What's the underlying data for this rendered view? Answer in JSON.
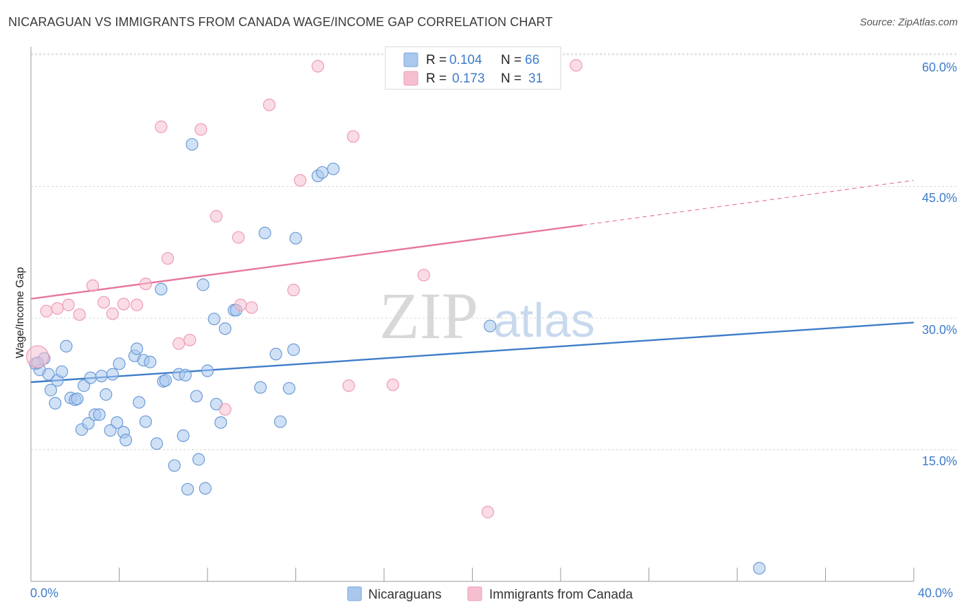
{
  "header": {
    "title": "NICARAGUAN VS IMMIGRANTS FROM CANADA WAGE/INCOME GAP CORRELATION CHART",
    "source": "Source: ZipAtlas.com"
  },
  "watermark": {
    "zip": "ZIP",
    "atlas": "atlas"
  },
  "legend": {
    "r_label": "R =",
    "n_label": "N =",
    "entries": [
      {
        "r": "0.104",
        "n": "66"
      },
      {
        "r": "0.173",
        "n": "31"
      }
    ]
  },
  "bottom_legend": {
    "items": [
      {
        "label": "Nicaraguans"
      },
      {
        "label": "Immigrants from Canada"
      }
    ]
  },
  "axes": {
    "ylabel": "Wage/Income Gap",
    "x_tick_labels": [
      "0.0%",
      "40.0%"
    ],
    "y_tick_labels": [
      "15.0%",
      "30.0%",
      "45.0%",
      "60.0%"
    ]
  },
  "colors": {
    "blue": "#3d7cc9",
    "blue_fill": "#aac8ee",
    "pink": "#e8759b",
    "pink_fill": "#f6bfd0",
    "grid": "#d6d6d6"
  },
  "chart_data": {
    "type": "scatter",
    "title": "NICARAGUAN VS IMMIGRANTS FROM CANADA WAGE/INCOME GAP CORRELATION CHART",
    "xlabel": "",
    "ylabel": "Wage/Income Gap",
    "xlim": [
      0,
      40
    ],
    "ylim": [
      0,
      64
    ],
    "y_ticks": [
      15,
      30,
      45,
      60
    ],
    "grid": true,
    "series": [
      {
        "name": "Nicaraguans",
        "color": "#3d7cc9",
        "trend": {
          "x": [
            0,
            40
          ],
          "y": [
            22.7,
            29.5
          ]
        },
        "points": [
          [
            0.2,
            24.8
          ],
          [
            0.4,
            24.1
          ],
          [
            0.6,
            25.4
          ],
          [
            0.8,
            23.6
          ],
          [
            0.9,
            21.8
          ],
          [
            1.1,
            20.3
          ],
          [
            1.2,
            22.9
          ],
          [
            1.4,
            23.9
          ],
          [
            1.6,
            26.8
          ],
          [
            1.8,
            20.9
          ],
          [
            2.0,
            20.7
          ],
          [
            2.4,
            22.3
          ],
          [
            2.3,
            17.3
          ],
          [
            2.6,
            18.0
          ],
          [
            2.7,
            23.2
          ],
          [
            2.9,
            19.0
          ],
          [
            3.1,
            19.0
          ],
          [
            3.2,
            23.4
          ],
          [
            3.4,
            21.3
          ],
          [
            3.6,
            17.2
          ],
          [
            3.7,
            23.6
          ],
          [
            3.9,
            18.1
          ],
          [
            4.0,
            24.8
          ],
          [
            4.2,
            17.0
          ],
          [
            4.3,
            16.1
          ],
          [
            4.7,
            25.7
          ],
          [
            4.8,
            26.5
          ],
          [
            4.9,
            20.4
          ],
          [
            5.1,
            25.2
          ],
          [
            5.2,
            18.2
          ],
          [
            5.4,
            25.0
          ],
          [
            5.7,
            15.7
          ],
          [
            5.9,
            33.3
          ],
          [
            6.0,
            22.8
          ],
          [
            6.1,
            22.9
          ],
          [
            6.5,
            13.2
          ],
          [
            6.7,
            23.6
          ],
          [
            6.9,
            16.6
          ],
          [
            7.0,
            23.5
          ],
          [
            7.1,
            10.5
          ],
          [
            7.3,
            49.8
          ],
          [
            7.5,
            21.1
          ],
          [
            7.6,
            13.9
          ],
          [
            7.8,
            33.8
          ],
          [
            7.9,
            10.6
          ],
          [
            8.0,
            24.0
          ],
          [
            8.3,
            29.9
          ],
          [
            8.4,
            20.2
          ],
          [
            8.6,
            18.1
          ],
          [
            8.8,
            28.8
          ],
          [
            9.2,
            30.9
          ],
          [
            9.3,
            30.9
          ],
          [
            10.4,
            22.1
          ],
          [
            10.6,
            39.7
          ],
          [
            11.1,
            25.9
          ],
          [
            11.3,
            18.2
          ],
          [
            11.7,
            22.0
          ],
          [
            11.9,
            26.4
          ],
          [
            12.0,
            39.1
          ],
          [
            13.0,
            46.2
          ],
          [
            13.2,
            46.6
          ],
          [
            13.7,
            47.0
          ],
          [
            20.8,
            29.1
          ],
          [
            33.0,
            1.5
          ],
          [
            0.3,
            24.9
          ],
          [
            2.1,
            20.8
          ]
        ]
      },
      {
        "name": "Immigrants from Canada",
        "color": "#e8759b",
        "trend": {
          "x": [
            0,
            25
          ],
          "y": [
            32.2,
            40.6
          ],
          "dashed_to": {
            "x": 40,
            "y": 45.7
          }
        },
        "points": [
          [
            0.3,
            25.6
          ],
          [
            0.7,
            30.8
          ],
          [
            1.2,
            31.1
          ],
          [
            1.7,
            31.5
          ],
          [
            2.2,
            30.4
          ],
          [
            2.8,
            33.7
          ],
          [
            3.3,
            31.8
          ],
          [
            3.7,
            30.5
          ],
          [
            4.2,
            31.6
          ],
          [
            4.8,
            31.5
          ],
          [
            5.2,
            33.9
          ],
          [
            5.9,
            51.8
          ],
          [
            6.2,
            36.8
          ],
          [
            6.7,
            27.1
          ],
          [
            7.2,
            27.5
          ],
          [
            7.7,
            51.5
          ],
          [
            8.4,
            41.6
          ],
          [
            8.8,
            19.6
          ],
          [
            9.4,
            39.2
          ],
          [
            9.5,
            31.5
          ],
          [
            10.0,
            31.2
          ],
          [
            10.8,
            54.3
          ],
          [
            11.9,
            33.2
          ],
          [
            12.2,
            45.7
          ],
          [
            13.0,
            58.7
          ],
          [
            14.4,
            22.3
          ],
          [
            14.6,
            50.7
          ],
          [
            16.4,
            22.4
          ],
          [
            17.8,
            34.9
          ],
          [
            20.7,
            7.9
          ],
          [
            24.7,
            58.8
          ]
        ]
      }
    ]
  }
}
